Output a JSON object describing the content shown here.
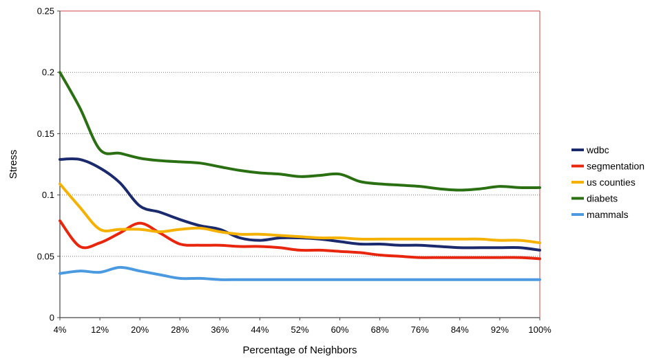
{
  "chart_data": {
    "type": "line",
    "xlabel": "Percentage of Neighbors",
    "ylabel": "Stress",
    "x_tick_labels": [
      "4%",
      "12%",
      "20%",
      "28%",
      "36%",
      "44%",
      "52%",
      "60%",
      "68%",
      "76%",
      "84%",
      "92%",
      "100%"
    ],
    "y_tick_labels": [
      "0",
      "0.05",
      "0.1",
      "0.15",
      "0.2",
      "0.25"
    ],
    "xlim": [
      4,
      100
    ],
    "ylim": [
      0,
      0.25
    ],
    "grid": true,
    "legend_position": "right",
    "x": [
      4,
      8,
      12,
      16,
      20,
      24,
      28,
      32,
      36,
      40,
      44,
      48,
      52,
      56,
      60,
      64,
      68,
      72,
      76,
      80,
      84,
      88,
      92,
      96,
      100
    ],
    "series": [
      {
        "name": "wdbc",
        "color": "#1a2a6c",
        "values": [
          0.129,
          0.129,
          0.122,
          0.11,
          0.091,
          0.086,
          0.08,
          0.075,
          0.072,
          0.065,
          0.063,
          0.065,
          0.065,
          0.064,
          0.062,
          0.06,
          0.06,
          0.059,
          0.059,
          0.058,
          0.057,
          0.057,
          0.057,
          0.057,
          0.055
        ]
      },
      {
        "name": "segmentation",
        "color": "#e8260e",
        "values": [
          0.079,
          0.058,
          0.061,
          0.069,
          0.077,
          0.069,
          0.06,
          0.059,
          0.059,
          0.058,
          0.058,
          0.057,
          0.055,
          0.055,
          0.054,
          0.053,
          0.051,
          0.05,
          0.049,
          0.049,
          0.049,
          0.049,
          0.049,
          0.049,
          0.048
        ]
      },
      {
        "name": "us counties",
        "color": "#f5b100",
        "values": [
          0.109,
          0.09,
          0.072,
          0.072,
          0.072,
          0.07,
          0.072,
          0.073,
          0.07,
          0.068,
          0.068,
          0.067,
          0.066,
          0.065,
          0.065,
          0.064,
          0.064,
          0.064,
          0.064,
          0.064,
          0.064,
          0.064,
          0.063,
          0.063,
          0.061
        ]
      },
      {
        "name": "diabets",
        "color": "#2a7012",
        "values": [
          0.2,
          0.171,
          0.137,
          0.134,
          0.13,
          0.128,
          0.127,
          0.126,
          0.123,
          0.12,
          0.118,
          0.117,
          0.115,
          0.116,
          0.117,
          0.111,
          0.109,
          0.108,
          0.107,
          0.105,
          0.104,
          0.105,
          0.107,
          0.106,
          0.106
        ]
      },
      {
        "name": "mammals",
        "color": "#4b9ae0",
        "values": [
          0.036,
          0.038,
          0.037,
          0.041,
          0.038,
          0.035,
          0.032,
          0.032,
          0.031,
          0.031,
          0.031,
          0.031,
          0.031,
          0.031,
          0.031,
          0.031,
          0.031,
          0.031,
          0.031,
          0.031,
          0.031,
          0.031,
          0.031,
          0.031,
          0.031
        ]
      }
    ]
  }
}
